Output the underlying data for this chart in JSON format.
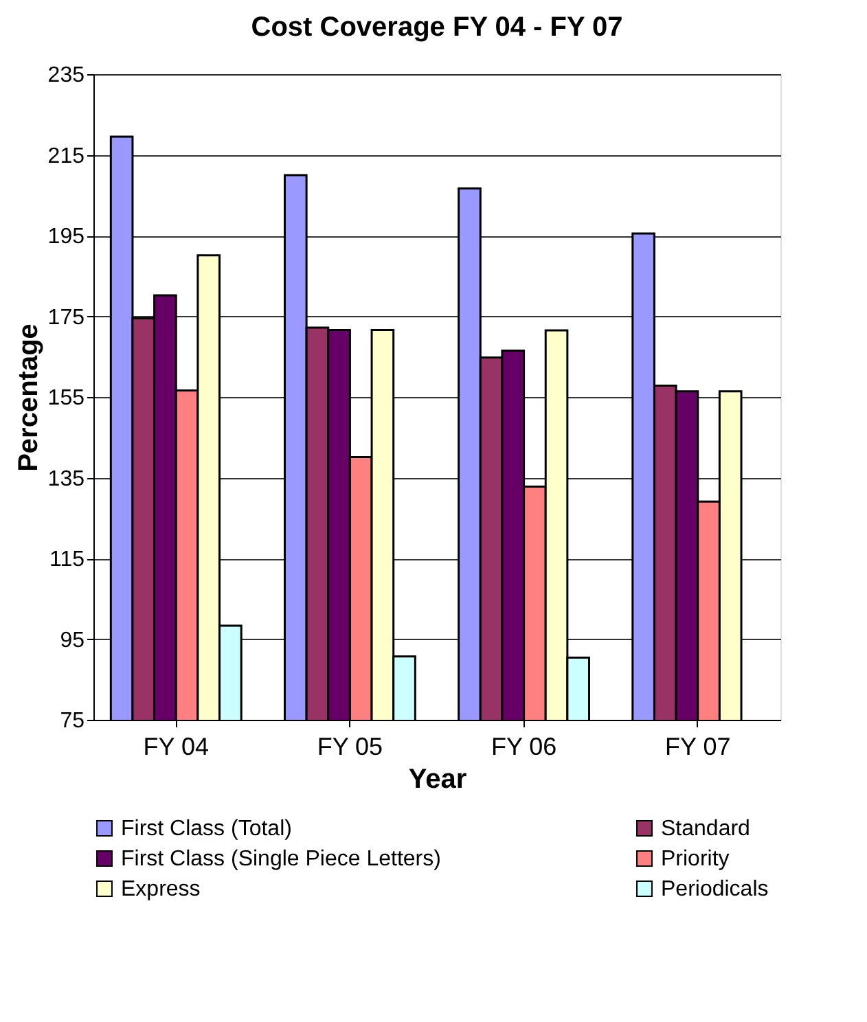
{
  "chart_data": {
    "type": "bar",
    "title": "Cost Coverage FY 04 - FY 07",
    "xlabel": "Year",
    "ylabel": "Percentage",
    "categories": [
      "FY 04",
      "FY 05",
      "FY 06",
      "FY 07"
    ],
    "series": [
      {
        "name": "First Class (Total)",
        "color": "#9999ff",
        "values": [
          219.5,
          210,
          206.7,
          195.5
        ]
      },
      {
        "name": "Standard",
        "color": "#993366",
        "values": [
          174.5,
          172.2,
          164.8,
          157.8
        ]
      },
      {
        "name": "First Class (Single Piece Letters)",
        "color": "#660066",
        "values": [
          180.2,
          171.6,
          166.5,
          156.4
        ]
      },
      {
        "name": "Priority",
        "color": "#ff8080",
        "values": [
          156.6,
          140.1,
          132.8,
          129.1
        ]
      },
      {
        "name": "Express",
        "color": "#ffffcc",
        "values": [
          190.1,
          171.6,
          171.5,
          156.4
        ]
      },
      {
        "name": "Periodicals",
        "color": "#ccffff",
        "values": [
          98.3,
          90.7,
          90.4,
          null
        ]
      }
    ],
    "ylim": [
      75,
      235
    ],
    "yticks": [
      75,
      95,
      115,
      135,
      155,
      175,
      195,
      215,
      235
    ],
    "grid": "y",
    "legend": "bottom"
  }
}
